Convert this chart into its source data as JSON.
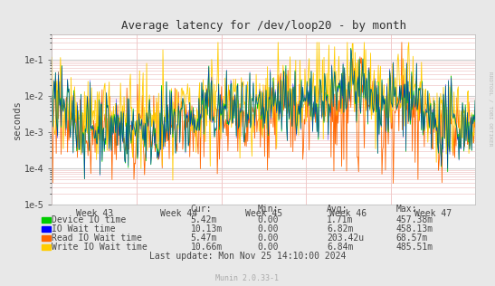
{
  "title": "Average latency for /dev/loop20 - by month",
  "ylabel": "seconds",
  "background_color": "#e8e8e8",
  "plot_background": "#ffffff",
  "major_grid_color": "#cccccc",
  "minor_grid_color": "#f0c8c8",
  "x_week_labels": [
    "Week 43",
    "Week 44",
    "Week 45",
    "Week 46",
    "Week 47"
  ],
  "legend_entries": [
    {
      "label": "Device IO time",
      "color": "#00cc00"
    },
    {
      "label": "IO Wait time",
      "color": "#0000ff"
    },
    {
      "label": "Read IO Wait time",
      "color": "#ff6600"
    },
    {
      "label": "Write IO Wait time",
      "color": "#ffcc00"
    }
  ],
  "table_headers": [
    "Cur:",
    "Min:",
    "Avg:",
    "Max:"
  ],
  "table_rows": [
    [
      "5.42m",
      "0.00",
      "1.71m",
      "457.38m"
    ],
    [
      "10.13m",
      "0.00",
      "6.82m",
      "458.13m"
    ],
    [
      "5.47m",
      "0.00",
      "203.42u",
      "68.57m"
    ],
    [
      "10.66m",
      "0.00",
      "6.84m",
      "485.51m"
    ]
  ],
  "last_update": "Last update: Mon Nov 25 14:10:00 2024",
  "munin_version": "Munin 2.0.33-1",
  "rrdtool_label": "RRDTOOL / TOBI OETIKER",
  "seed": 42,
  "n_points": 600,
  "ylim_min": 1e-05,
  "ylim_max": 0.5
}
